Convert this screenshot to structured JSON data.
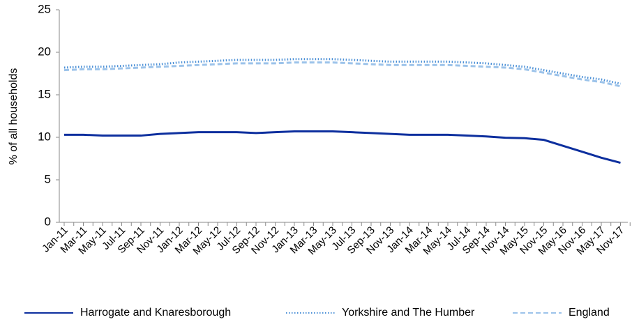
{
  "chart_data": {
    "type": "line",
    "y_label": "% of all households",
    "categories": [
      "Jan-11",
      "Mar-11",
      "May-11",
      "Jul-11",
      "Sep-11",
      "Nov-11",
      "Jan-12",
      "Mar-12",
      "May-12",
      "Jul-12",
      "Sep-12",
      "Nov-12",
      "Jan-13",
      "Mar-13",
      "May-13",
      "Jul-13",
      "Sep-13",
      "Nov-13",
      "Jan-14",
      "Mar-14",
      "May-14",
      "Jul-14",
      "Sep-14",
      "Nov-14",
      "May-15",
      "Nov-15",
      "May-16",
      "Nov-16",
      "May-17",
      "Nov-17"
    ],
    "series": [
      {
        "name": "Harrogate and Knaresborough",
        "color": "#0d2f9e",
        "style": "solid",
        "values": [
          10.3,
          10.3,
          10.2,
          10.2,
          10.2,
          10.4,
          10.5,
          10.6,
          10.6,
          10.6,
          10.5,
          10.6,
          10.7,
          10.7,
          10.7,
          10.6,
          10.5,
          10.4,
          10.3,
          10.3,
          10.3,
          10.2,
          10.1,
          9.95,
          9.9,
          9.7,
          9.0,
          8.3,
          7.6,
          7.0
        ]
      },
      {
        "name": "Yorkshire and The Humber",
        "color": "#4a8fd6",
        "style": "dotted",
        "values": [
          18.2,
          18.3,
          18.3,
          18.4,
          18.5,
          18.6,
          18.8,
          18.9,
          19.0,
          19.1,
          19.1,
          19.1,
          19.2,
          19.2,
          19.2,
          19.1,
          19.0,
          18.9,
          18.9,
          18.9,
          18.9,
          18.8,
          18.7,
          18.5,
          18.3,
          17.9,
          17.5,
          17.1,
          16.8,
          16.3
        ]
      },
      {
        "name": "England",
        "color": "#9cc3ea",
        "style": "dashed",
        "values": [
          17.9,
          18.0,
          18.0,
          18.1,
          18.2,
          18.3,
          18.4,
          18.5,
          18.6,
          18.7,
          18.7,
          18.7,
          18.8,
          18.8,
          18.8,
          18.7,
          18.6,
          18.5,
          18.5,
          18.5,
          18.5,
          18.4,
          18.3,
          18.2,
          18.0,
          17.6,
          17.2,
          16.8,
          16.5,
          16.0
        ]
      }
    ],
    "ylim": [
      0,
      25
    ],
    "yticks": [
      0,
      5,
      10,
      15,
      20,
      25
    ]
  }
}
